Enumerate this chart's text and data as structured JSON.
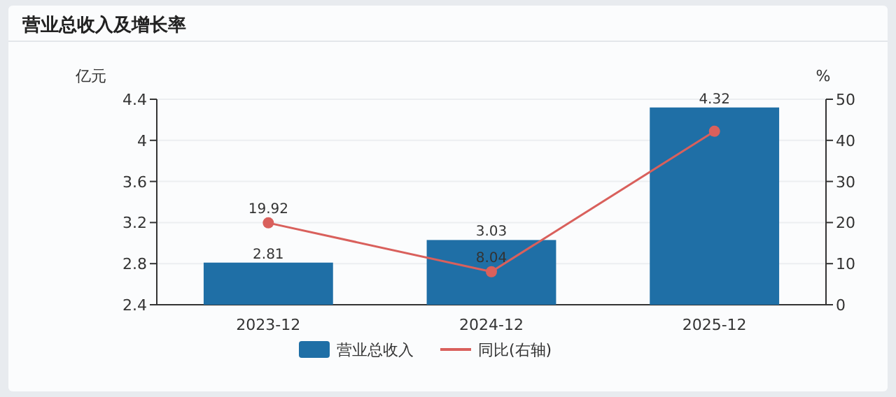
{
  "chart_data": {
    "type": "bar",
    "title": "营业总收入及增长率",
    "ylabel": "亿元",
    "y2label": "%",
    "categories": [
      "2023-12",
      "2024-12",
      "2025-12"
    ],
    "series": [
      {
        "name": "营业总收入",
        "color": "#1f6fa6",
        "values": [
          2.81,
          3.03,
          4.32
        ],
        "value_labels": [
          "2.81",
          "3.03",
          "4.32"
        ]
      },
      {
        "name": "同比(右轴)",
        "type": "line",
        "axis": "y2",
        "color": "#d9605c",
        "marker": "circle",
        "values": [
          19.92,
          8.04,
          42.2
        ],
        "value_labels": [
          "19.92",
          "8.04",
          null
        ]
      }
    ],
    "ylim": [
      2.4,
      4.4
    ],
    "yticks": [
      2.4,
      2.8,
      3.2,
      3.6,
      4,
      4.4
    ],
    "y2lim": [
      0,
      50
    ],
    "y2ticks": [
      0,
      10,
      20,
      30,
      40,
      50
    ],
    "grid": "y",
    "legend": "bottom"
  }
}
